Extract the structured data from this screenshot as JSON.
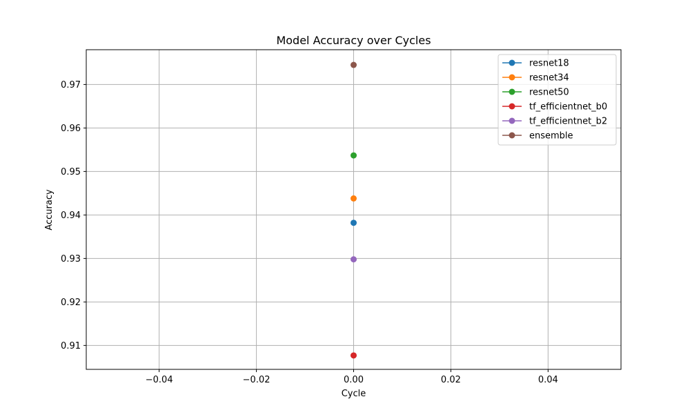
{
  "chart_data": {
    "type": "scatter",
    "title": "Model Accuracy over Cycles",
    "xlabel": "Cycle",
    "ylabel": "Accuracy",
    "xlim": [
      -0.055,
      0.055
    ],
    "ylim": [
      0.9045,
      0.978
    ],
    "xticks": [
      -0.04,
      -0.02,
      0.0,
      0.02,
      0.04
    ],
    "xtick_labels": [
      "−0.04",
      "−0.02",
      "0.00",
      "0.02",
      "0.04"
    ],
    "yticks": [
      0.91,
      0.92,
      0.93,
      0.94,
      0.95,
      0.96,
      0.97
    ],
    "ytick_labels": [
      "0.91",
      "0.92",
      "0.93",
      "0.94",
      "0.95",
      "0.96",
      "0.97"
    ],
    "grid": true,
    "legend_position": "top-right",
    "series": [
      {
        "name": "resnet18",
        "color": "#1f77b4",
        "x": [
          0
        ],
        "y": [
          0.9382
        ]
      },
      {
        "name": "resnet34",
        "color": "#ff7f0e",
        "x": [
          0
        ],
        "y": [
          0.9438
        ]
      },
      {
        "name": "resnet50",
        "color": "#2ca02c",
        "x": [
          0
        ],
        "y": [
          0.9537
        ]
      },
      {
        "name": "tf_efficientnet_b0",
        "color": "#d62728",
        "x": [
          0
        ],
        "y": [
          0.9077
        ]
      },
      {
        "name": "tf_efficientnet_b2",
        "color": "#9467bd",
        "x": [
          0
        ],
        "y": [
          0.9298
        ]
      },
      {
        "name": "ensemble",
        "color": "#8c564b",
        "x": [
          0
        ],
        "y": [
          0.9745
        ]
      }
    ]
  }
}
